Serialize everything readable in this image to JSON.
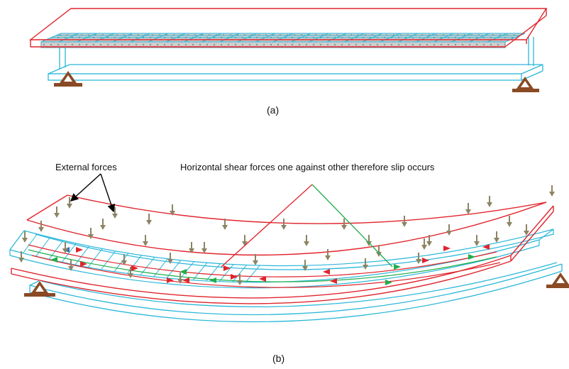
{
  "figure": {
    "panel_a_label": "(a)",
    "panel_b_label": "(b)",
    "annotations": {
      "external_forces": "External forces",
      "horizontal_shear": "Horizontal shear forces one against other therefore slip occurs"
    },
    "colors": {
      "slab_outline": "#e0242c",
      "steel_beam": "#2ab7d9",
      "mesh": "#2ab7d9",
      "support": "#8a4a24",
      "load_arrow": "#8c8463",
      "shear_red": "#e0242c",
      "shear_green": "#1fae4a",
      "shear_blue": "#2f6db7",
      "leader_black": "#000000"
    }
  }
}
